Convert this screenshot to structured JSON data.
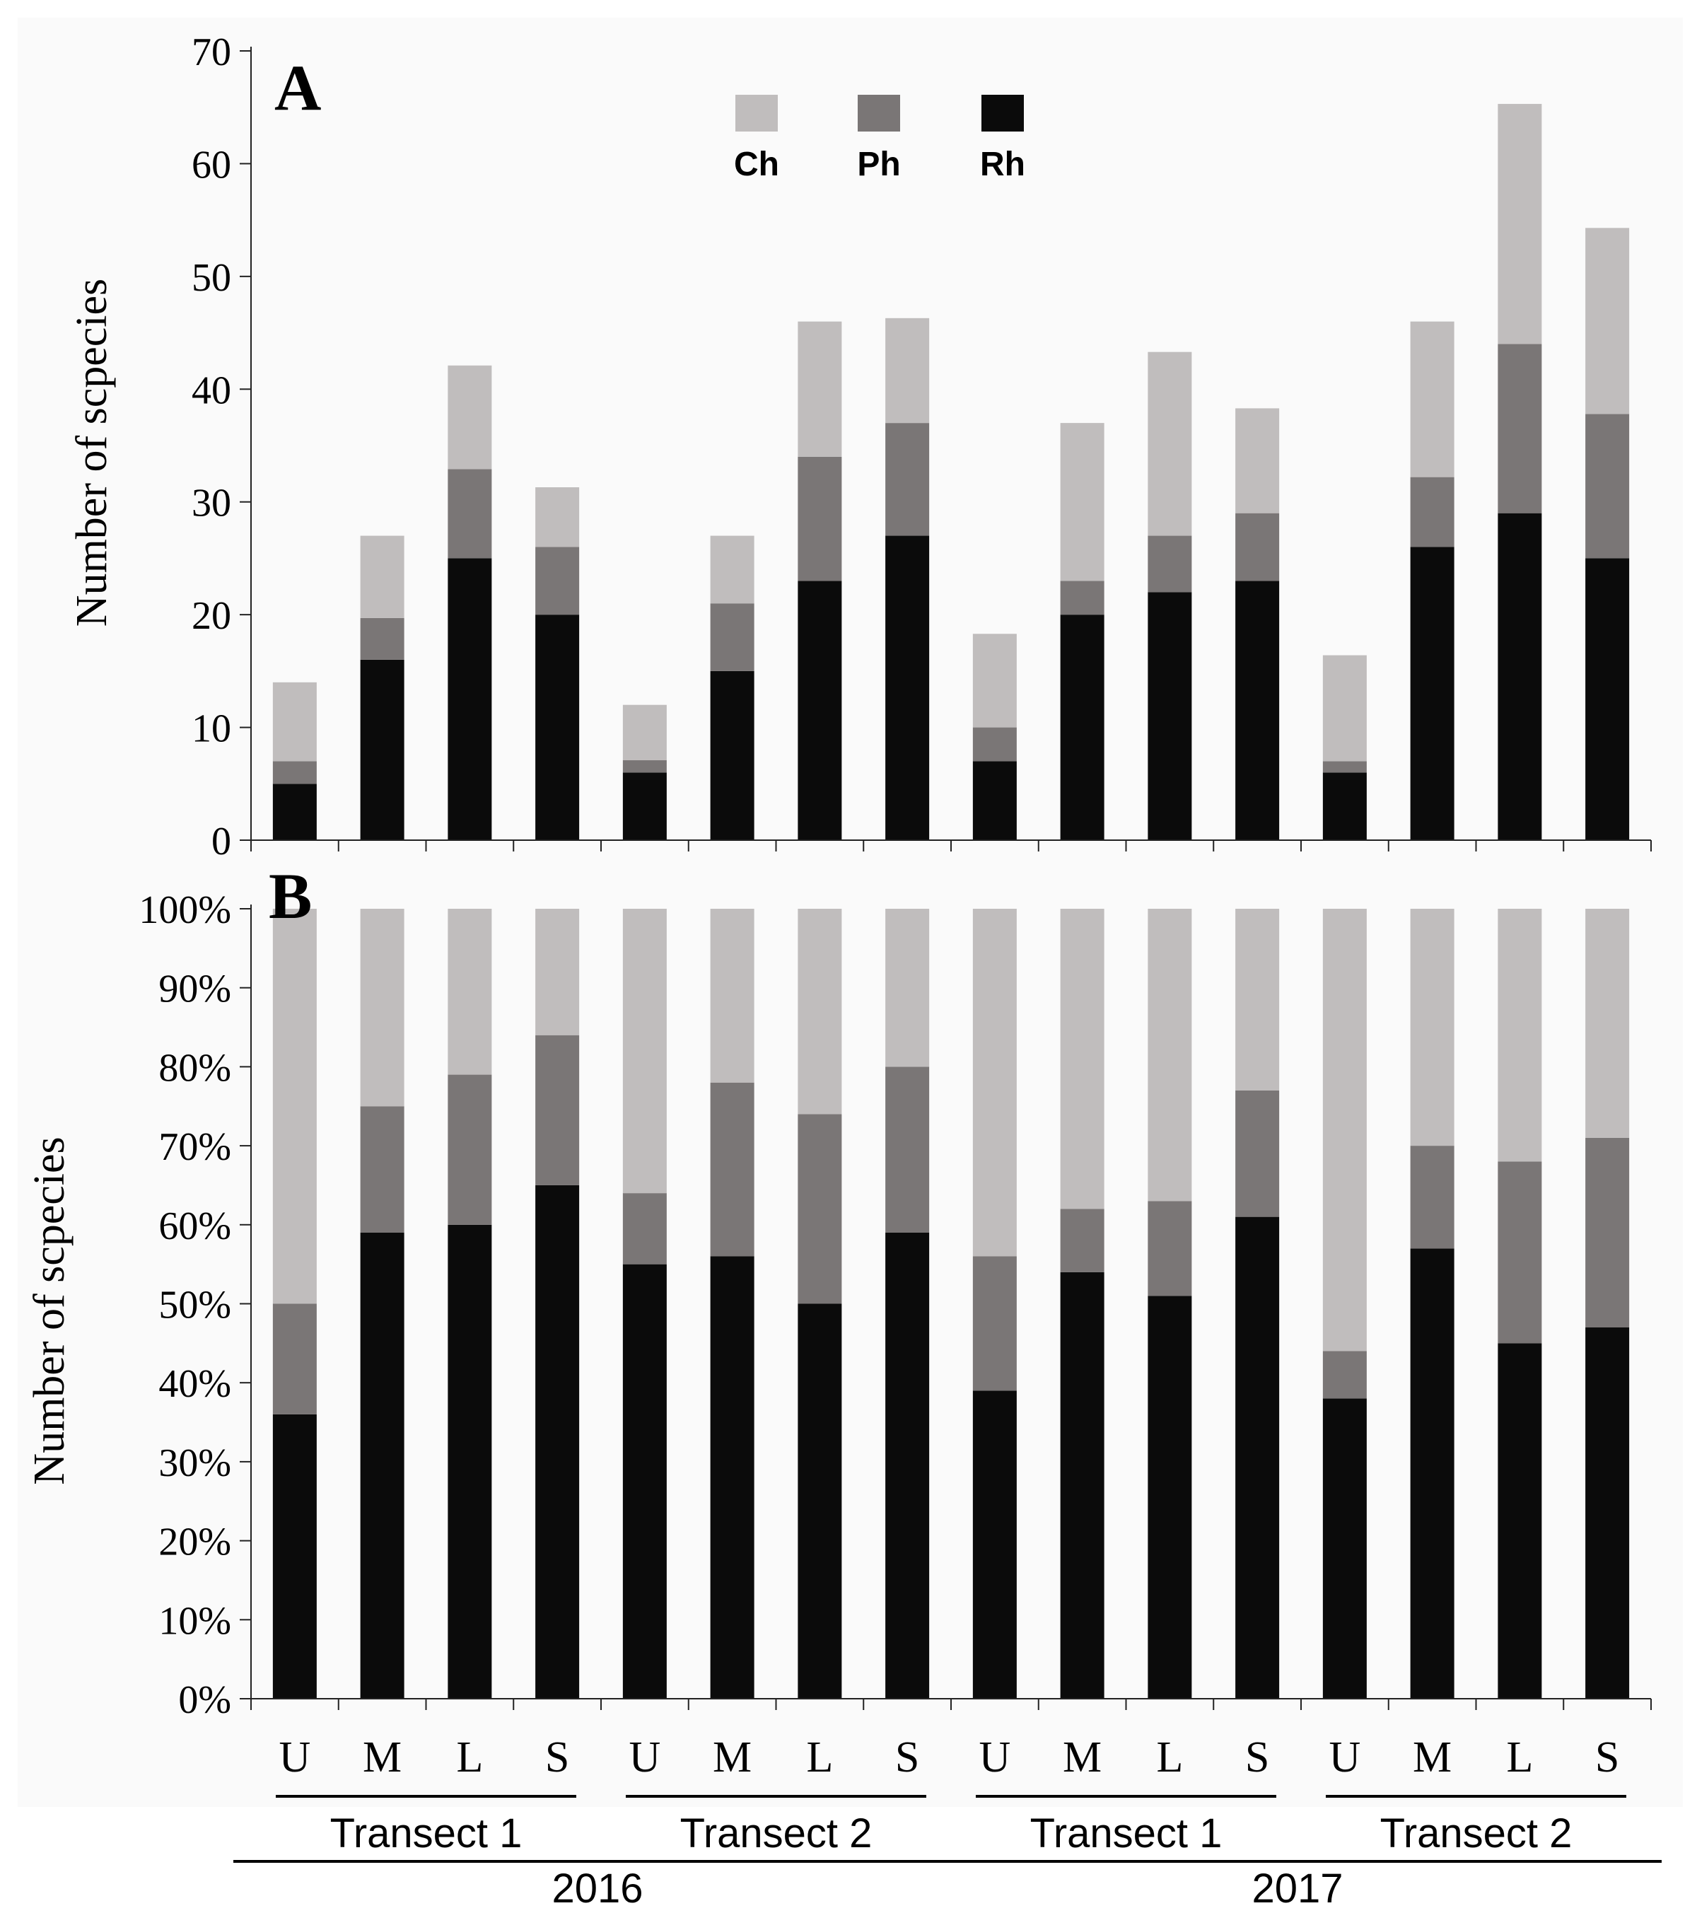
{
  "colors": {
    "background": "#fafafa",
    "Ch": "#c0bdbd",
    "Ph": "#7a7676",
    "Rh": "#0b0b0b",
    "axis": "#222222"
  },
  "legend": [
    {
      "key": "Ch",
      "label": "Ch"
    },
    {
      "key": "Ph",
      "label": "Ph"
    },
    {
      "key": "Rh",
      "label": "Rh"
    }
  ],
  "categories": [
    "U",
    "M",
    "L",
    "S",
    "U",
    "M",
    "L",
    "S",
    "U",
    "M",
    "L",
    "S",
    "U",
    "M",
    "L",
    "S"
  ],
  "transects": [
    {
      "label": "Transect 1",
      "from": 0,
      "to": 3
    },
    {
      "label": "Transect 2",
      "from": 4,
      "to": 7
    },
    {
      "label": "Transect  1",
      "from": 8,
      "to": 11
    },
    {
      "label": "Transect 2",
      "from": 12,
      "to": 15
    }
  ],
  "years": [
    {
      "label": "2016",
      "from": 0,
      "to": 7
    },
    {
      "label": "2017",
      "from": 8,
      "to": 15
    }
  ],
  "chart_data": [
    {
      "type": "bar",
      "stacked": true,
      "panel": "A",
      "ylabel": "Number of scpecies",
      "ylim": [
        0,
        70
      ],
      "yticks": [
        0,
        10,
        20,
        30,
        40,
        50,
        60,
        70
      ],
      "ytick_labels": [
        "0",
        "10",
        "20",
        "30",
        "40",
        "50",
        "60",
        "70"
      ],
      "legend_position": "top-center",
      "series": [
        {
          "name": "Rh",
          "values": [
            5,
            16,
            25,
            20,
            6,
            15,
            23,
            27,
            7,
            20,
            22,
            23,
            6,
            26,
            29,
            25
          ]
        },
        {
          "name": "Ph",
          "values": [
            2,
            3.7,
            7.9,
            6,
            1.1,
            6,
            11,
            10,
            3,
            3,
            5,
            6,
            1,
            6.2,
            15,
            12.8
          ]
        },
        {
          "name": "Ch",
          "values": [
            7,
            7.3,
            9.2,
            5.3,
            4.9,
            6,
            12,
            9.3,
            8.3,
            14,
            16.3,
            9.3,
            9.4,
            13.8,
            21.3,
            16.5
          ]
        }
      ]
    },
    {
      "type": "bar",
      "stacked": true,
      "panel": "B",
      "ylabel": "Number of scpecies",
      "ylim": [
        0,
        100
      ],
      "yticks": [
        0,
        10,
        20,
        30,
        40,
        50,
        60,
        70,
        80,
        90,
        100
      ],
      "ytick_labels": [
        "0%",
        "10%",
        "20%",
        "30%",
        "40%",
        "50%",
        "60%",
        "70%",
        "80%",
        "90%",
        "100%"
      ],
      "series": [
        {
          "name": "Rh",
          "values": [
            36,
            59,
            60,
            65,
            55,
            56,
            50,
            59,
            39,
            54,
            51,
            61,
            38,
            57,
            45,
            47
          ]
        },
        {
          "name": "Ph",
          "values": [
            14,
            16,
            19,
            19,
            9,
            22,
            24,
            21,
            17,
            8,
            12,
            16,
            6,
            13,
            23,
            24
          ]
        },
        {
          "name": "Ch",
          "values": [
            50,
            25,
            21,
            16,
            36,
            22,
            26,
            20,
            44,
            38,
            37,
            23,
            56,
            30,
            32,
            29
          ]
        }
      ]
    }
  ]
}
